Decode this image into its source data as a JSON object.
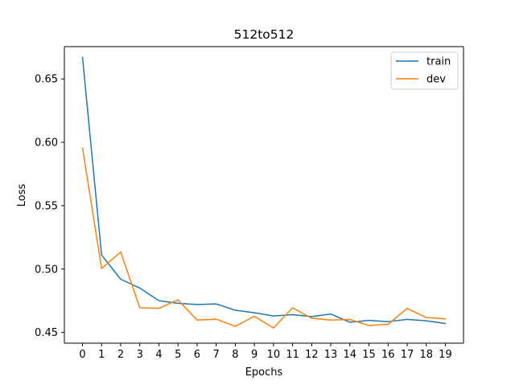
{
  "chart_data": {
    "type": "line",
    "title": "512to512",
    "xlabel": "Epochs",
    "ylabel": "Loss",
    "x": [
      0,
      1,
      2,
      3,
      4,
      5,
      6,
      7,
      8,
      9,
      10,
      11,
      12,
      13,
      14,
      15,
      16,
      17,
      18,
      19
    ],
    "xlim": [
      -0.95,
      19.95
    ],
    "ylim": [
      0.4415,
      0.6755
    ],
    "yticks": [
      0.45,
      0.5,
      0.55,
      0.6,
      0.65
    ],
    "ytick_labels": [
      "0.45",
      "0.50",
      "0.55",
      "0.60",
      "0.65"
    ],
    "xtick_labels": [
      "0",
      "1",
      "2",
      "3",
      "4",
      "5",
      "6",
      "7",
      "8",
      "9",
      "10",
      "11",
      "12",
      "13",
      "14",
      "15",
      "16",
      "17",
      "18",
      "19"
    ],
    "grid": false,
    "legend_position": "top-right",
    "series": [
      {
        "name": "train",
        "color": "#1f77b4",
        "values": [
          0.667,
          0.511,
          0.492,
          0.485,
          0.475,
          0.473,
          0.472,
          0.4725,
          0.4675,
          0.4655,
          0.463,
          0.464,
          0.4625,
          0.4645,
          0.458,
          0.4595,
          0.4585,
          0.4603,
          0.4592,
          0.457
        ]
      },
      {
        "name": "dev",
        "color": "#ff7f0e",
        "values": [
          0.5955,
          0.5005,
          0.5135,
          0.4695,
          0.469,
          0.4757,
          0.4597,
          0.4605,
          0.4548,
          0.4627,
          0.4535,
          0.4694,
          0.4612,
          0.4597,
          0.4602,
          0.4555,
          0.4563,
          0.469,
          0.4617,
          0.4607
        ]
      }
    ]
  }
}
